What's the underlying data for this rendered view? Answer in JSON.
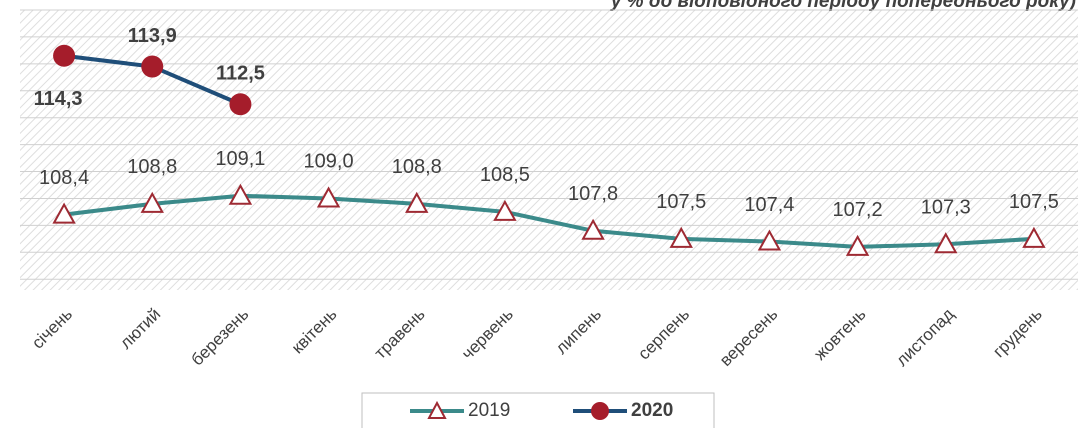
{
  "chart_data": {
    "type": "line",
    "subtitle": "у % до відповідного періоду попереднього року)",
    "categories": [
      "січень",
      "лютий",
      "березень",
      "квітень",
      "травень",
      "червень",
      "липень",
      "серпень",
      "вересень",
      "жовтень",
      "листопад",
      "грудень"
    ],
    "series": [
      {
        "name": "2019",
        "color": "#3b8a8a",
        "marker": "triangle",
        "marker_color": "#9e2a33",
        "values": [
          108.4,
          108.8,
          109.1,
          109.0,
          108.8,
          108.5,
          107.8,
          107.5,
          107.4,
          107.2,
          107.3,
          107.5
        ],
        "value_labels": [
          "108,4",
          "108,8",
          "109,1",
          "109,0",
          "108,8",
          "108,5",
          "107,8",
          "107,5",
          "107,4",
          "107,2",
          "107,3",
          "107,5"
        ]
      },
      {
        "name": "2020",
        "color": "#1f4e79",
        "marker": "circle",
        "marker_color": "#a51d2b",
        "values": [
          114.3,
          113.9,
          112.5,
          null,
          null,
          null,
          null,
          null,
          null,
          null,
          null,
          null
        ],
        "value_labels": [
          "114,3",
          "113,9",
          "112,5",
          null,
          null,
          null,
          null,
          null,
          null,
          null,
          null,
          null
        ]
      }
    ],
    "ylim": [
      105.6,
      116
    ],
    "yticks": [
      106,
      107,
      108,
      109,
      110,
      111,
      112,
      113,
      114,
      115,
      116
    ],
    "grid": true
  }
}
